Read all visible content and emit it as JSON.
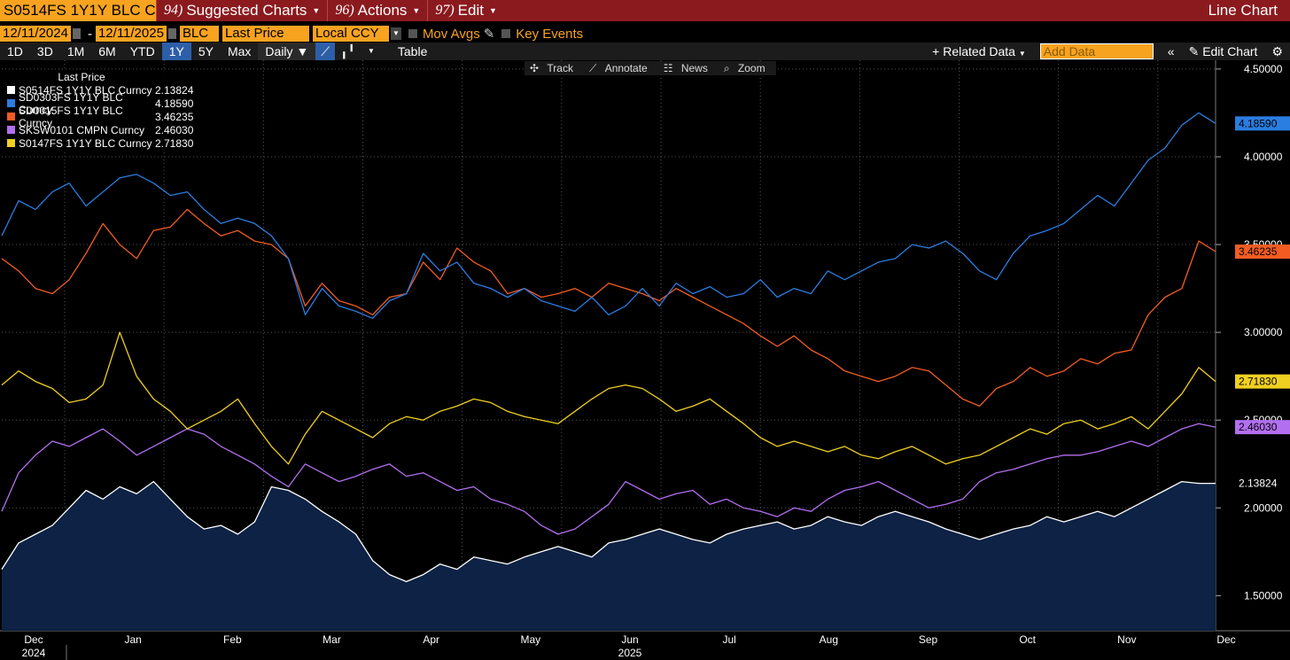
{
  "titlebar": {
    "ticker": "S0514FS 1Y1Y BLC Curncy",
    "menus": [
      {
        "num": "94)",
        "label": "Suggested Charts"
      },
      {
        "num": "96)",
        "label": "Actions"
      },
      {
        "num": "97)",
        "label": "Edit"
      }
    ],
    "window_title": "Line Chart"
  },
  "controls": {
    "start_date": "12/11/2024",
    "dash": "-",
    "end_date": "12/11/2025",
    "field1": "BLC",
    "field2": "Last Price",
    "field3": "Local CCY",
    "mov_avgs": "Mov Avgs",
    "key_events": "Key Events"
  },
  "toolbar": {
    "periods": [
      "1D",
      "3D",
      "1M",
      "6M",
      "YTD",
      "1Y",
      "5Y",
      "Max"
    ],
    "active_period": "1Y",
    "frequency": "Daily",
    "table": "Table",
    "related_data": "Related Data",
    "add_data_placeholder": "Add Data",
    "edit_chart": "Edit Chart"
  },
  "chart_tools": [
    "Track",
    "Annotate",
    "News",
    "Zoom"
  ],
  "legend": {
    "title": "Last Price",
    "entries": [
      {
        "name": "S0514FS 1Y1Y BLC Curncy",
        "value": "2.13824",
        "color": "#ffffff"
      },
      {
        "name": "SD0303FS 1Y1Y BLC Curncy",
        "value": "4.18590",
        "color": "#2a7de1"
      },
      {
        "name": "SD0015FS 1Y1Y BLC Curncy",
        "value": "3.46235",
        "color": "#f25c22"
      },
      {
        "name": "SKSW0101 CMPN Curncy",
        "value": "2.46030",
        "color": "#b26ff0"
      },
      {
        "name": "S0147FS 1Y1Y BLC Curncy",
        "value": "2.71830",
        "color": "#f0d020"
      }
    ]
  },
  "chart_data": {
    "type": "line",
    "y_ticks": [
      "4.50000",
      "4.00000",
      "3.50000",
      "3.00000",
      "2.50000",
      "2.00000",
      "1.50000"
    ],
    "y_range": [
      1.3,
      4.55
    ],
    "x_labels": [
      {
        "label": "Dec",
        "year": "2024"
      },
      {
        "label": "Jan"
      },
      {
        "label": "Feb"
      },
      {
        "label": "Mar"
      },
      {
        "label": "Apr"
      },
      {
        "label": "May"
      },
      {
        "label": "Jun",
        "year": "2025"
      },
      {
        "label": "Jul"
      },
      {
        "label": "Aug"
      },
      {
        "label": "Sep"
      },
      {
        "label": "Oct"
      },
      {
        "label": "Nov"
      },
      {
        "label": "Dec"
      }
    ],
    "grid": true,
    "series": [
      {
        "name": "SD0303FS 1Y1Y BLC Curncy",
        "color": "#2a7de1",
        "values": [
          3.55,
          3.75,
          3.7,
          3.8,
          3.85,
          3.72,
          3.8,
          3.88,
          3.9,
          3.85,
          3.78,
          3.8,
          3.7,
          3.62,
          3.65,
          3.62,
          3.55,
          3.42,
          3.1,
          3.25,
          3.15,
          3.12,
          3.08,
          3.18,
          3.22,
          3.45,
          3.35,
          3.4,
          3.28,
          3.25,
          3.2,
          3.25,
          3.18,
          3.15,
          3.12,
          3.2,
          3.1,
          3.15,
          3.25,
          3.15,
          3.28,
          3.22,
          3.26,
          3.2,
          3.22,
          3.3,
          3.2,
          3.25,
          3.22,
          3.35,
          3.3,
          3.35,
          3.4,
          3.42,
          3.5,
          3.48,
          3.52,
          3.45,
          3.35,
          3.3,
          3.45,
          3.55,
          3.58,
          3.62,
          3.7,
          3.78,
          3.72,
          3.85,
          3.98,
          4.05,
          4.18,
          4.25,
          4.19
        ]
      },
      {
        "name": "SD0015FS 1Y1Y BLC Curncy",
        "color": "#f25c22",
        "values": [
          3.42,
          3.35,
          3.25,
          3.22,
          3.3,
          3.45,
          3.62,
          3.5,
          3.42,
          3.58,
          3.6,
          3.7,
          3.62,
          3.55,
          3.58,
          3.52,
          3.5,
          3.42,
          3.15,
          3.28,
          3.18,
          3.15,
          3.1,
          3.2,
          3.22,
          3.4,
          3.3,
          3.48,
          3.4,
          3.35,
          3.22,
          3.25,
          3.2,
          3.22,
          3.25,
          3.2,
          3.28,
          3.25,
          3.22,
          3.18,
          3.25,
          3.2,
          3.15,
          3.1,
          3.05,
          2.98,
          2.92,
          2.98,
          2.9,
          2.85,
          2.78,
          2.75,
          2.72,
          2.75,
          2.8,
          2.78,
          2.7,
          2.62,
          2.58,
          2.68,
          2.72,
          2.8,
          2.75,
          2.78,
          2.85,
          2.82,
          2.88,
          2.9,
          3.1,
          3.2,
          3.25,
          3.52,
          3.46
        ]
      },
      {
        "name": "S0147FS 1Y1Y BLC Curncy",
        "color": "#f0d020",
        "values": [
          2.7,
          2.78,
          2.72,
          2.68,
          2.6,
          2.62,
          2.7,
          3.0,
          2.75,
          2.62,
          2.55,
          2.45,
          2.5,
          2.55,
          2.62,
          2.48,
          2.35,
          2.25,
          2.42,
          2.55,
          2.5,
          2.45,
          2.4,
          2.48,
          2.52,
          2.5,
          2.55,
          2.58,
          2.62,
          2.6,
          2.55,
          2.52,
          2.5,
          2.48,
          2.55,
          2.62,
          2.68,
          2.7,
          2.68,
          2.62,
          2.55,
          2.58,
          2.62,
          2.55,
          2.48,
          2.4,
          2.35,
          2.38,
          2.35,
          2.32,
          2.35,
          2.3,
          2.28,
          2.32,
          2.35,
          2.3,
          2.25,
          2.28,
          2.3,
          2.35,
          2.4,
          2.45,
          2.42,
          2.48,
          2.5,
          2.45,
          2.48,
          2.52,
          2.45,
          2.55,
          2.65,
          2.8,
          2.72
        ]
      },
      {
        "name": "SKSW0101 CMPN Curncy",
        "color": "#b26ff0",
        "values": [
          1.98,
          2.2,
          2.3,
          2.38,
          2.35,
          2.4,
          2.45,
          2.38,
          2.3,
          2.35,
          2.4,
          2.45,
          2.42,
          2.35,
          2.3,
          2.25,
          2.18,
          2.12,
          2.25,
          2.2,
          2.15,
          2.18,
          2.22,
          2.25,
          2.18,
          2.2,
          2.15,
          2.1,
          2.12,
          2.05,
          2.02,
          1.98,
          1.9,
          1.85,
          1.88,
          1.95,
          2.02,
          2.15,
          2.1,
          2.05,
          2.08,
          2.1,
          2.02,
          2.05,
          2.0,
          1.98,
          1.95,
          2.0,
          1.98,
          2.05,
          2.1,
          2.12,
          2.15,
          2.1,
          2.05,
          2.0,
          2.02,
          2.05,
          2.15,
          2.2,
          2.22,
          2.25,
          2.28,
          2.3,
          2.3,
          2.32,
          2.35,
          2.38,
          2.35,
          2.4,
          2.45,
          2.48,
          2.46
        ]
      },
      {
        "name": "S0514FS 1Y1Y BLC Curncy",
        "color": "#ffffff",
        "fill": "#0d2244",
        "values": [
          1.65,
          1.8,
          1.85,
          1.9,
          2.0,
          2.1,
          2.05,
          2.12,
          2.08,
          2.15,
          2.05,
          1.95,
          1.88,
          1.9,
          1.85,
          1.92,
          2.12,
          2.1,
          2.05,
          1.98,
          1.92,
          1.85,
          1.7,
          1.62,
          1.58,
          1.62,
          1.68,
          1.65,
          1.72,
          1.7,
          1.68,
          1.72,
          1.75,
          1.78,
          1.75,
          1.72,
          1.8,
          1.82,
          1.85,
          1.88,
          1.85,
          1.82,
          1.8,
          1.85,
          1.88,
          1.9,
          1.92,
          1.88,
          1.9,
          1.95,
          1.92,
          1.9,
          1.95,
          1.98,
          1.95,
          1.92,
          1.88,
          1.85,
          1.82,
          1.85,
          1.88,
          1.9,
          1.95,
          1.92,
          1.95,
          1.98,
          1.95,
          2.0,
          2.05,
          2.1,
          2.15,
          2.14,
          2.14
        ]
      }
    ]
  }
}
